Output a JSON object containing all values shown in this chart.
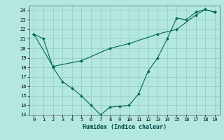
{
  "title": "",
  "xlabel": "Humidex (Indice chaleur)",
  "ylabel": "",
  "bg_color": "#b3e8e0",
  "grid_color": "#99cccc",
  "line_color": "#006655",
  "line1_x": [
    0,
    1,
    2,
    3,
    4,
    5,
    6,
    7,
    8,
    9,
    10,
    11,
    12,
    13,
    14,
    15,
    16,
    17,
    18,
    19
  ],
  "line1_y": [
    21.5,
    21.0,
    18.0,
    16.5,
    15.8,
    15.0,
    14.0,
    13.0,
    13.8,
    13.9,
    14.0,
    15.2,
    17.6,
    19.0,
    21.0,
    23.2,
    23.0,
    23.8,
    24.1,
    23.8
  ],
  "line2_x": [
    0,
    2,
    5,
    8,
    10,
    13,
    15,
    17,
    18,
    19
  ],
  "line2_y": [
    21.5,
    18.1,
    18.7,
    20.0,
    20.5,
    21.5,
    22.0,
    23.5,
    24.1,
    23.8
  ],
  "xlim": [
    -0.5,
    19.5
  ],
  "ylim": [
    13,
    24.5
  ],
  "yticks": [
    13,
    14,
    15,
    16,
    17,
    18,
    19,
    20,
    21,
    22,
    23,
    24
  ],
  "xticks": [
    0,
    1,
    2,
    3,
    4,
    5,
    6,
    7,
    8,
    9,
    10,
    11,
    12,
    13,
    14,
    15,
    16,
    17,
    18,
    19
  ]
}
